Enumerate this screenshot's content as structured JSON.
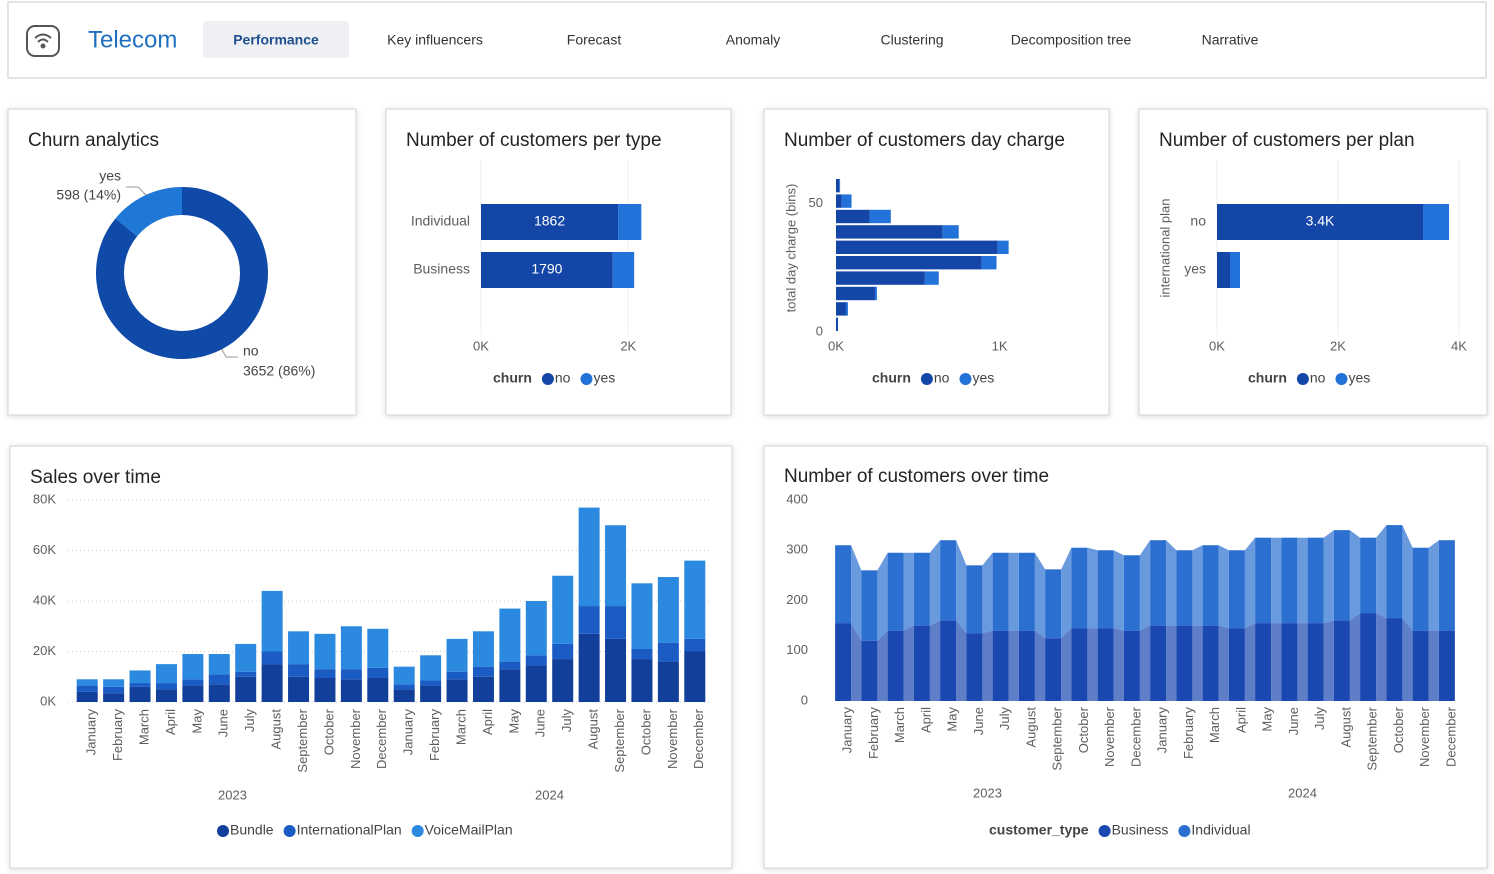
{
  "header": {
    "app_title": "Telecom",
    "tabs": [
      "Performance",
      "Key influencers",
      "Forecast",
      "Anomaly",
      "Clustering",
      "Decomposition tree",
      "Narrative"
    ],
    "active_tab": 0
  },
  "chart_data": [
    {
      "type": "donut",
      "title": "Churn analytics",
      "categories": [
        "no",
        "yes"
      ],
      "values": [
        3652,
        598
      ],
      "value_labels": [
        "3652 (86%)",
        "598 (14%)"
      ],
      "colors": [
        "#0f4aa8",
        "#1f78d6"
      ]
    },
    {
      "type": "hbar",
      "title": "Number of customers per type",
      "categories": [
        "Individual",
        "Business"
      ],
      "series": [
        {
          "name": "no",
          "color": "#1446a8",
          "values": [
            1862,
            1790
          ],
          "show_values": true
        },
        {
          "name": "yes",
          "color": "#2272d9",
          "values": [
            315,
            290
          ]
        }
      ],
      "xlim": [
        0,
        2200
      ],
      "xticks": [
        {
          "value": 0,
          "label": "0K"
        },
        {
          "value": 2000,
          "label": "2K"
        }
      ],
      "legend_title": "churn"
    },
    {
      "type": "histogram",
      "orientation": "horizontal",
      "title": "Number of customers day charge",
      "ylabel": "total day charge (bins)",
      "bins": [
        0,
        6,
        12,
        18,
        24,
        30,
        36,
        42,
        48,
        54,
        60
      ],
      "series": [
        {
          "name": "no",
          "color": "#1446a8",
          "values": [
            12,
            61,
            238,
            543,
            890,
            988,
            652,
            207,
            35,
            20
          ]
        },
        {
          "name": "yes",
          "color": "#2272d9",
          "values": [
            0,
            12,
            12,
            85,
            91,
            67,
            98,
            128,
            60,
            5
          ]
        }
      ],
      "xlim": [
        0,
        1100
      ],
      "xticks": [
        {
          "value": 0,
          "label": "0K"
        },
        {
          "value": 1000,
          "label": "1K"
        }
      ],
      "ylim": [
        0,
        60
      ],
      "yticks": [
        0,
        50
      ],
      "legend_title": "churn"
    },
    {
      "type": "hbar",
      "title": "Number of customers per plan",
      "ylabel": "international plan",
      "categories": [
        "no",
        "yes"
      ],
      "series": [
        {
          "name": "no",
          "color": "#1446a8",
          "values": [
            3405,
            215
          ],
          "value_labels": [
            "3.4K",
            null
          ]
        },
        {
          "name": "yes",
          "color": "#2272d9",
          "values": [
            430,
            165
          ]
        }
      ],
      "xlim": [
        0,
        4000
      ],
      "xticks": [
        {
          "value": 0,
          "label": "0K"
        },
        {
          "value": 2000,
          "label": "2K"
        },
        {
          "value": 4000,
          "label": "4K"
        }
      ],
      "legend_title": "churn"
    },
    {
      "type": "column",
      "stacked": true,
      "grid": true,
      "title": "Sales over time",
      "categories": [
        "January",
        "February",
        "March",
        "April",
        "May",
        "June",
        "July",
        "August",
        "September",
        "October",
        "November",
        "December",
        "January",
        "February",
        "March",
        "April",
        "May",
        "June",
        "July",
        "August",
        "September",
        "October",
        "November",
        "December"
      ],
      "groups": [
        "2023",
        "2024"
      ],
      "series": [
        {
          "name": "Bundle",
          "color": "#123f9a",
          "values": [
            4000,
            3500,
            6000,
            5000,
            6500,
            7000,
            10000,
            15000,
            10000,
            9500,
            9000,
            9500,
            5000,
            6500,
            9000,
            10000,
            13000,
            14500,
            17000,
            27000,
            25000,
            17000,
            16000,
            20000
          ]
        },
        {
          "name": "InternationalPlan",
          "color": "#1a5cc4",
          "values": [
            2500,
            2500,
            1500,
            2500,
            2500,
            4000,
            2000,
            5000,
            5000,
            3500,
            4000,
            4000,
            2000,
            2000,
            3000,
            4000,
            3000,
            4000,
            6000,
            11000,
            13000,
            4000,
            7500,
            5000
          ]
        },
        {
          "name": "VoiceMailPlan",
          "color": "#2b8ae0",
          "values": [
            2500,
            3000,
            5000,
            7500,
            10000,
            8000,
            11000,
            24000,
            13000,
            14000,
            17000,
            15500,
            7000,
            10000,
            13000,
            14000,
            21000,
            21500,
            27000,
            39000,
            32000,
            26000,
            26000,
            31000
          ]
        }
      ],
      "ylim": [
        0,
        80000
      ],
      "yticks": [
        {
          "value": 0,
          "label": "0K"
        },
        {
          "value": 20000,
          "label": "20K"
        },
        {
          "value": 40000,
          "label": "40K"
        },
        {
          "value": 60000,
          "label": "60K"
        },
        {
          "value": 80000,
          "label": "80K"
        }
      ]
    },
    {
      "type": "ribbon",
      "stacked": true,
      "title": "Number of customers over time",
      "categories": [
        "January",
        "February",
        "March",
        "April",
        "May",
        "June",
        "July",
        "August",
        "September",
        "October",
        "November",
        "December",
        "January",
        "February",
        "March",
        "April",
        "May",
        "June",
        "July",
        "August",
        "September",
        "October",
        "November",
        "December"
      ],
      "groups": [
        "2023",
        "2024"
      ],
      "series": [
        {
          "name": "Business",
          "color": "#1a48b0",
          "values": [
            155,
            120,
            140,
            150,
            160,
            135,
            140,
            140,
            125,
            145,
            145,
            140,
            150,
            150,
            150,
            145,
            155,
            155,
            155,
            160,
            175,
            165,
            140,
            140
          ]
        },
        {
          "name": "Individual",
          "color": "#2b6fd0",
          "values": [
            155,
            140,
            155,
            145,
            160,
            135,
            155,
            155,
            137,
            160,
            155,
            150,
            170,
            150,
            160,
            155,
            170,
            170,
            170,
            180,
            150,
            185,
            165,
            180
          ]
        }
      ],
      "ylim": [
        0,
        400
      ],
      "yticks": [
        0,
        100,
        200,
        300,
        400
      ],
      "legend_title": "customer_type"
    }
  ]
}
